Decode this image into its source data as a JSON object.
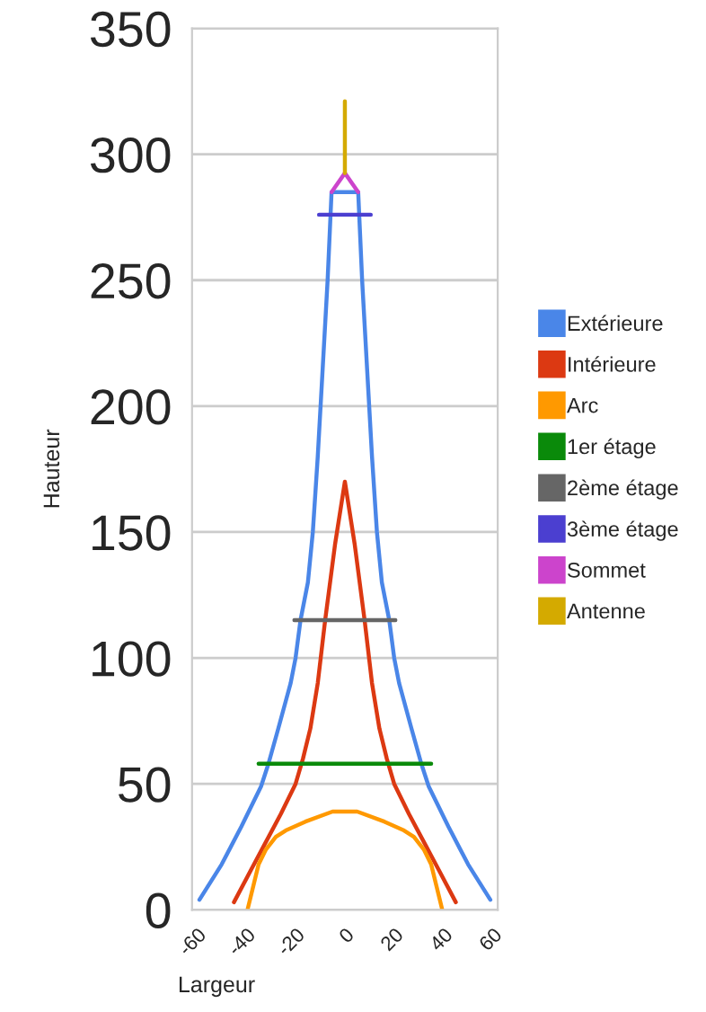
{
  "chart_data": {
    "type": "line",
    "xlabel": "Largeur",
    "ylabel": "Hauteur",
    "xlim": [
      -62,
      62
    ],
    "xticks": [
      -60,
      -40,
      -20,
      0,
      20,
      40,
      60
    ],
    "ylim": [
      0,
      350
    ],
    "yticks": [
      0,
      50,
      100,
      150,
      200,
      250,
      300,
      350
    ],
    "grid": "y",
    "legend": "right",
    "marker": "none",
    "line_style": "solid",
    "series": [
      {
        "name": "Extérieure",
        "color": "#4a86e8",
        "x": [
          -59,
          -50,
          -42,
          -34,
          -31,
          -27,
          -22,
          -20,
          -18,
          -15,
          -13,
          -11,
          -9,
          -7,
          -5.4,
          5.4,
          7,
          9,
          11,
          13,
          15,
          18,
          20,
          22,
          27,
          31,
          34,
          42,
          50,
          59
        ],
        "values": [
          4,
          18,
          33,
          49,
          58,
          72,
          90,
          100,
          115,
          130,
          150,
          180,
          215,
          250,
          285,
          285,
          250,
          215,
          180,
          150,
          130,
          115,
          100,
          90,
          72,
          58,
          49,
          33,
          18,
          4
        ]
      },
      {
        "name": "Intérieure",
        "color": "#dc3912",
        "x": [
          -45,
          -38,
          -32,
          -26,
          -20,
          -17,
          -14,
          -11,
          -8,
          -4,
          0,
          4,
          8,
          11,
          14,
          17,
          20,
          26,
          32,
          38,
          45
        ],
        "values": [
          3,
          16,
          27,
          38,
          50,
          60,
          72,
          90,
          115,
          145,
          170,
          145,
          115,
          90,
          72,
          60,
          50,
          38,
          27,
          16,
          3
        ]
      },
      {
        "name": "Arc",
        "color": "#ff9900",
        "x": [
          -39.5,
          -37,
          -35,
          -32,
          -28,
          -24,
          -16,
          -5,
          5,
          16,
          24,
          28,
          32,
          35,
          37,
          39.5
        ],
        "values": [
          0,
          10,
          18,
          24,
          29,
          31.5,
          35,
          39,
          39,
          35,
          31.5,
          29,
          24,
          18,
          10,
          0
        ]
      },
      {
        "name": "1er étage",
        "color": "#0a8a0a",
        "x": [
          -35,
          35
        ],
        "values": [
          58,
          58
        ]
      },
      {
        "name": "2ème étage",
        "color": "#666666",
        "x": [
          -20.5,
          20.5
        ],
        "values": [
          115,
          115
        ]
      },
      {
        "name": "3ème étage",
        "color": "#4b3fd0",
        "x": [
          -10.5,
          10.5
        ],
        "values": [
          276,
          276
        ]
      },
      {
        "name": "Sommet",
        "color": "#cc44cc",
        "x": [
          -5.4,
          0,
          5.4
        ],
        "values": [
          285,
          292.5,
          285
        ]
      },
      {
        "name": "Antenne",
        "color": "#d4aa00",
        "x": [
          0,
          0
        ],
        "values": [
          292.5,
          321
        ]
      }
    ]
  }
}
